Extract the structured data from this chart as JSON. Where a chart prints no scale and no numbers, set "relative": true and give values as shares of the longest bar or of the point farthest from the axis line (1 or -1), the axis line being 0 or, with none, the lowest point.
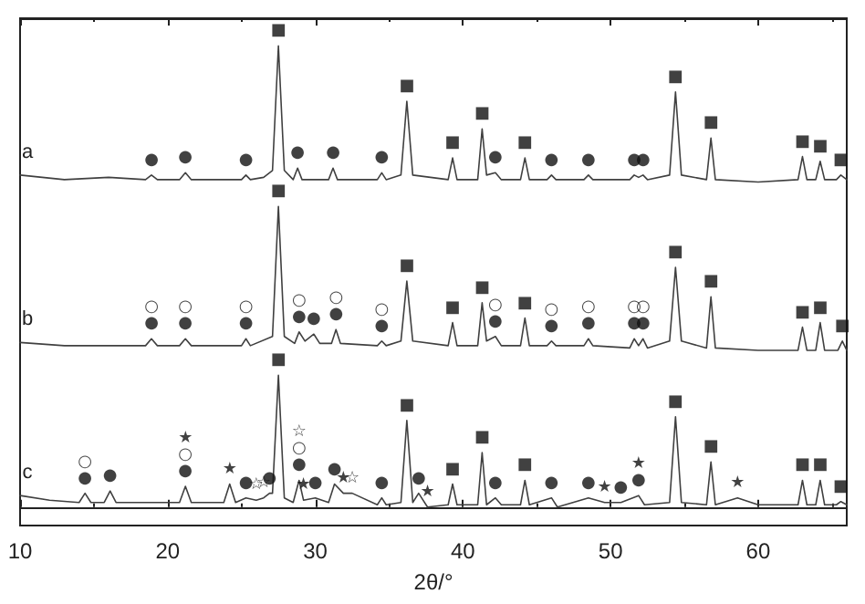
{
  "chart_data": {
    "type": "line",
    "relative": true,
    "xlabel": "2θ/°",
    "xlim": [
      10,
      66
    ],
    "xticks": [
      10,
      20,
      30,
      40,
      50,
      60
    ],
    "marker": "none",
    "line_style": "solid",
    "series": [
      {
        "name": "a",
        "color": "#404040",
        "x": [
          10,
          13,
          16,
          18.5,
          18.9,
          19.3,
          20.8,
          21.2,
          21.6,
          25,
          25.3,
          25.6,
          26.5,
          27.1,
          27.5,
          27.9,
          28.5,
          28.8,
          29.1,
          30.9,
          31.2,
          31.5,
          34.2,
          34.5,
          34.8,
          35.8,
          36.2,
          36.6,
          39,
          39.3,
          39.6,
          41,
          41.3,
          41.6,
          42.2,
          42.6,
          43.9,
          44.2,
          44.5,
          45.7,
          46,
          46.3,
          48.2,
          48.5,
          48.8,
          51.3,
          51.6,
          51.9,
          52.2,
          52.5,
          54,
          54.4,
          54.8,
          56.5,
          56.8,
          57.1,
          60,
          62.7,
          63,
          63.3,
          63.9,
          64.2,
          64.5,
          65.3,
          65.6,
          66
        ],
        "values": [
          0.72,
          0.71,
          0.715,
          0.71,
          0.72,
          0.71,
          0.71,
          0.725,
          0.71,
          0.71,
          0.72,
          0.71,
          0.715,
          0.73,
          1.0,
          0.73,
          0.71,
          0.735,
          0.71,
          0.71,
          0.735,
          0.71,
          0.71,
          0.725,
          0.71,
          0.72,
          0.88,
          0.72,
          0.71,
          0.757,
          0.71,
          0.71,
          0.82,
          0.72,
          0.725,
          0.71,
          0.71,
          0.757,
          0.71,
          0.71,
          0.72,
          0.71,
          0.71,
          0.72,
          0.71,
          0.71,
          0.72,
          0.715,
          0.72,
          0.71,
          0.72,
          0.9,
          0.72,
          0.71,
          0.8,
          0.71,
          0.705,
          0.71,
          0.76,
          0.71,
          0.71,
          0.75,
          0.71,
          0.71,
          0.72,
          0.71
        ]
      },
      {
        "name": "b",
        "color": "#404040",
        "x": [
          10,
          13,
          16,
          18.5,
          18.9,
          19.3,
          20.8,
          21.2,
          21.6,
          25,
          25.3,
          25.6,
          27.1,
          27.5,
          27.9,
          28.6,
          28.9,
          29.3,
          29.9,
          30.3,
          31.1,
          31.4,
          31.7,
          34.2,
          34.5,
          34.8,
          35.8,
          36.2,
          36.6,
          39,
          39.3,
          39.6,
          41,
          41.3,
          41.6,
          42.2,
          42.6,
          43.9,
          44.2,
          44.5,
          45.7,
          46,
          46.3,
          48.2,
          48.5,
          48.8,
          51.3,
          51.6,
          51.9,
          52.2,
          52.5,
          54,
          54.4,
          54.8,
          56.5,
          56.8,
          57.1,
          60,
          62.7,
          63,
          63.3,
          63.9,
          64.2,
          64.5,
          65.4,
          65.7,
          66
        ],
        "values": [
          0.357,
          0.35,
          0.35,
          0.35,
          0.365,
          0.35,
          0.35,
          0.365,
          0.35,
          0.35,
          0.365,
          0.35,
          0.37,
          0.652,
          0.37,
          0.355,
          0.38,
          0.36,
          0.375,
          0.355,
          0.355,
          0.385,
          0.355,
          0.35,
          0.36,
          0.35,
          0.36,
          0.49,
          0.36,
          0.35,
          0.4,
          0.35,
          0.35,
          0.443,
          0.36,
          0.37,
          0.35,
          0.35,
          0.41,
          0.35,
          0.35,
          0.36,
          0.35,
          0.35,
          0.365,
          0.35,
          0.345,
          0.365,
          0.35,
          0.365,
          0.345,
          0.36,
          0.52,
          0.36,
          0.345,
          0.456,
          0.345,
          0.34,
          0.34,
          0.39,
          0.34,
          0.34,
          0.4,
          0.34,
          0.34,
          0.36,
          0.34
        ]
      },
      {
        "name": "c",
        "color": "#404040",
        "x": [
          10,
          12,
          14,
          14.4,
          14.8,
          15.7,
          16.1,
          16.5,
          20.8,
          21.2,
          21.6,
          23.8,
          24.2,
          24.6,
          25.3,
          26,
          26.5,
          26.9,
          27.1,
          27.5,
          27.9,
          28.5,
          28.9,
          29.2,
          30,
          30.9,
          31.3,
          31.9,
          32.5,
          34.2,
          34.5,
          34.8,
          35.8,
          36.2,
          36.6,
          37,
          37.6,
          39,
          39.3,
          39.6,
          41,
          41.3,
          41.6,
          42.2,
          42.6,
          43.9,
          44.2,
          44.5,
          46,
          46.4,
          48.5,
          49.6,
          50.7,
          51.9,
          52.3,
          54,
          54.4,
          54.8,
          56.5,
          56.8,
          57.1,
          58.6,
          60,
          62.7,
          63,
          63.3,
          63.9,
          64.2,
          64.5,
          65.3,
          65.6,
          66
        ],
        "values": [
          0.025,
          0.015,
          0.01,
          0.03,
          0.01,
          0.01,
          0.035,
          0.01,
          0.01,
          0.045,
          0.01,
          0.01,
          0.05,
          0.01,
          0.02,
          0.015,
          0.02,
          0.03,
          0.03,
          0.286,
          0.02,
          0.01,
          0.058,
          0.015,
          0.02,
          0.01,
          0.05,
          0.03,
          0.03,
          0.005,
          0.02,
          0.005,
          0.01,
          0.188,
          0.01,
          0.03,
          0.0,
          0.005,
          0.05,
          0.005,
          0.005,
          0.118,
          0.005,
          0.02,
          0.005,
          0.005,
          0.058,
          0.005,
          0.02,
          0.0,
          0.02,
          0.01,
          0.01,
          0.025,
          0.005,
          0.01,
          0.196,
          0.01,
          0.005,
          0.098,
          0.005,
          0.02,
          0.005,
          0.005,
          0.058,
          0.005,
          0.005,
          0.058,
          0.005,
          0.005,
          0.012,
          0.005
        ]
      }
    ],
    "annotations": [
      {
        "text": "●",
        "x": 18.9,
        "y": 0.72
      },
      {
        "text": "●",
        "x": 21.2,
        "y": 0.725
      },
      {
        "text": "●",
        "x": 25.3,
        "y": 0.72
      },
      {
        "text": "■",
        "x": 27.5,
        "y": 1.0
      },
      {
        "text": "●",
        "x": 28.8,
        "y": 0.735
      },
      {
        "text": "●",
        "x": 31.2,
        "y": 0.735
      },
      {
        "text": "●",
        "x": 34.5,
        "y": 0.725
      },
      {
        "text": "■",
        "x": 36.2,
        "y": 0.88
      },
      {
        "text": "■",
        "x": 39.3,
        "y": 0.757
      },
      {
        "text": "■",
        "x": 41.3,
        "y": 0.82
      },
      {
        "text": "●",
        "x": 42.2,
        "y": 0.725
      },
      {
        "text": "■",
        "x": 44.2,
        "y": 0.757
      },
      {
        "text": "●",
        "x": 46,
        "y": 0.72
      },
      {
        "text": "●",
        "x": 48.5,
        "y": 0.72
      },
      {
        "text": "●",
        "x": 51.6,
        "y": 0.72
      },
      {
        "text": "●",
        "x": 52.2,
        "y": 0.72
      },
      {
        "text": "■",
        "x": 54.4,
        "y": 0.9
      },
      {
        "text": "■",
        "x": 56.8,
        "y": 0.8
      },
      {
        "text": "■",
        "x": 63,
        "y": 0.76
      },
      {
        "text": "■",
        "x": 64.2,
        "y": 0.75
      },
      {
        "text": "■",
        "x": 65.6,
        "y": 0.72
      },
      {
        "text": "○",
        "x": 18.9,
        "y": 0.365
      },
      {
        "text": "●",
        "x": 18.9,
        "y": 0.365
      },
      {
        "text": "○",
        "x": 21.2,
        "y": 0.365
      },
      {
        "text": "●",
        "x": 21.2,
        "y": 0.365
      },
      {
        "text": "○",
        "x": 25.3,
        "y": 0.365
      },
      {
        "text": "●",
        "x": 25.3,
        "y": 0.365
      },
      {
        "text": "■",
        "x": 27.5,
        "y": 0.652
      },
      {
        "text": "○",
        "x": 28.9,
        "y": 0.38
      },
      {
        "text": "●",
        "x": 28.9,
        "y": 0.38
      },
      {
        "text": "●",
        "x": 29.9,
        "y": 0.375
      },
      {
        "text": "○",
        "x": 31.4,
        "y": 0.385
      },
      {
        "text": "●",
        "x": 31.4,
        "y": 0.385
      },
      {
        "text": "○",
        "x": 34.5,
        "y": 0.36
      },
      {
        "text": "●",
        "x": 34.5,
        "y": 0.36
      },
      {
        "text": "■",
        "x": 36.2,
        "y": 0.49
      },
      {
        "text": "■",
        "x": 39.3,
        "y": 0.4
      },
      {
        "text": "■",
        "x": 41.3,
        "y": 0.443
      },
      {
        "text": "○",
        "x": 42.2,
        "y": 0.37
      },
      {
        "text": "●",
        "x": 42.2,
        "y": 0.37
      },
      {
        "text": "■",
        "x": 44.2,
        "y": 0.41
      },
      {
        "text": "○",
        "x": 46,
        "y": 0.36
      },
      {
        "text": "●",
        "x": 46,
        "y": 0.36
      },
      {
        "text": "○",
        "x": 48.5,
        "y": 0.365
      },
      {
        "text": "●",
        "x": 48.5,
        "y": 0.365
      },
      {
        "text": "○",
        "x": 51.6,
        "y": 0.365
      },
      {
        "text": "●",
        "x": 51.6,
        "y": 0.365
      },
      {
        "text": "○",
        "x": 52.2,
        "y": 0.365
      },
      {
        "text": "●",
        "x": 52.2,
        "y": 0.365
      },
      {
        "text": "■",
        "x": 54.4,
        "y": 0.52
      },
      {
        "text": "■",
        "x": 56.8,
        "y": 0.456
      },
      {
        "text": "■",
        "x": 63,
        "y": 0.39
      },
      {
        "text": "■",
        "x": 64.2,
        "y": 0.4
      },
      {
        "text": "■",
        "x": 65.7,
        "y": 0.36
      },
      {
        "text": "○",
        "x": 14.4,
        "y": 0.03
      },
      {
        "text": "●",
        "x": 14.4,
        "y": 0.03
      },
      {
        "text": "●",
        "x": 16.1,
        "y": 0.035
      },
      {
        "text": "★",
        "x": 21.2,
        "y": 0.045
      },
      {
        "text": "○",
        "x": 21.2,
        "y": 0.045
      },
      {
        "text": "●",
        "x": 21.2,
        "y": 0.045
      },
      {
        "text": "★",
        "x": 24.2,
        "y": 0.05
      },
      {
        "text": "●",
        "x": 25.3,
        "y": 0.02
      },
      {
        "text": "☆",
        "x": 26,
        "y": 0.015
      },
      {
        "text": "☆",
        "x": 26.5,
        "y": 0.02
      },
      {
        "text": "●",
        "x": 26.9,
        "y": 0.03
      },
      {
        "text": "■",
        "x": 27.5,
        "y": 0.286
      },
      {
        "text": "☆",
        "x": 28.9,
        "y": 0.058
      },
      {
        "text": "○",
        "x": 28.9,
        "y": 0.058
      },
      {
        "text": "●",
        "x": 28.9,
        "y": 0.058
      },
      {
        "text": "★",
        "x": 29.2,
        "y": 0.015
      },
      {
        "text": "●",
        "x": 30,
        "y": 0.02
      },
      {
        "text": "●",
        "x": 31.3,
        "y": 0.05
      },
      {
        "text": "★",
        "x": 31.9,
        "y": 0.03
      },
      {
        "text": "☆",
        "x": 32.5,
        "y": 0.03
      },
      {
        "text": "●",
        "x": 34.5,
        "y": 0.02
      },
      {
        "text": "■",
        "x": 36.2,
        "y": 0.188
      },
      {
        "text": "●",
        "x": 37,
        "y": 0.03
      },
      {
        "text": "★",
        "x": 37.6,
        "y": 0.0
      },
      {
        "text": "■",
        "x": 39.3,
        "y": 0.05
      },
      {
        "text": "■",
        "x": 41.3,
        "y": 0.118
      },
      {
        "text": "●",
        "x": 42.2,
        "y": 0.02
      },
      {
        "text": "■",
        "x": 44.2,
        "y": 0.058
      },
      {
        "text": "●",
        "x": 46,
        "y": 0.02
      },
      {
        "text": "●",
        "x": 48.5,
        "y": 0.02
      },
      {
        "text": "★",
        "x": 49.6,
        "y": 0.01
      },
      {
        "text": "●",
        "x": 50.7,
        "y": 0.01
      },
      {
        "text": "★",
        "x": 51.9,
        "y": 0.025
      },
      {
        "text": "●",
        "x": 51.9,
        "y": 0.025
      },
      {
        "text": "■",
        "x": 54.4,
        "y": 0.196
      },
      {
        "text": "■",
        "x": 56.8,
        "y": 0.098
      },
      {
        "text": "★",
        "x": 58.6,
        "y": 0.02
      },
      {
        "text": "■",
        "x": 63,
        "y": 0.058
      },
      {
        "text": "■",
        "x": 64.2,
        "y": 0.058
      },
      {
        "text": "■",
        "x": 65.6,
        "y": 0.012
      }
    ]
  }
}
